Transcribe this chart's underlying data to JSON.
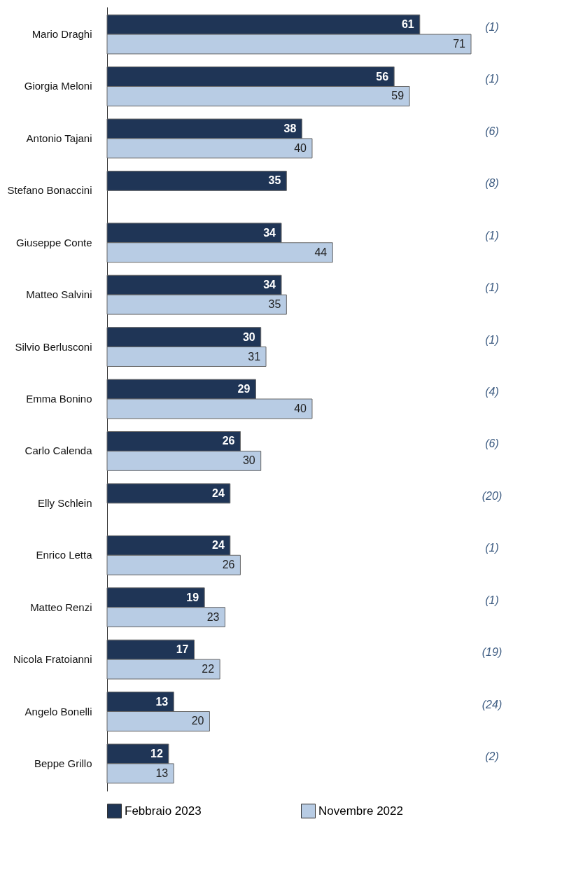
{
  "chart_data": {
    "type": "bar",
    "orientation": "horizontal",
    "categories": [
      "Mario Draghi",
      "Giorgia Meloni",
      "Antonio Tajani",
      "Stefano Bonaccini",
      "Giuseppe Conte",
      "Matteo Salvini",
      "Silvio Berlusconi",
      "Emma Bonino",
      "Carlo Calenda",
      "Elly Schlein",
      "Enrico Letta",
      "Matteo Renzi",
      "Nicola Fratoianni",
      "Angelo Bonelli",
      "Beppe Grillo"
    ],
    "series": [
      {
        "name": "Febbraio 2023",
        "color": "#1f3556",
        "values": [
          61,
          56,
          38,
          35,
          34,
          34,
          30,
          29,
          26,
          24,
          24,
          19,
          17,
          13,
          12
        ]
      },
      {
        "name": "Novembre 2022",
        "color": "#b8cce4",
        "values": [
          71,
          59,
          40,
          null,
          44,
          35,
          31,
          40,
          30,
          null,
          26,
          23,
          22,
          20,
          13
        ]
      }
    ],
    "data_labels": true,
    "legend": "bottom",
    "annotations": [
      "(1)",
      "(1)",
      "(6)",
      "(8)",
      "(1)",
      "(1)",
      "(1)",
      "(4)",
      "(6)",
      "(20)",
      "(1)",
      "(1)",
      "(19)",
      "(24)",
      "(2)"
    ]
  }
}
